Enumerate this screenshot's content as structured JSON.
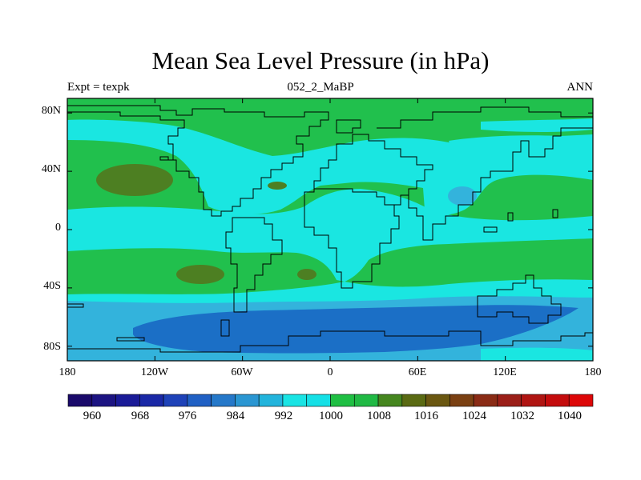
{
  "title": "Mean Sea Level Pressure (in hPa)",
  "left_string": "Expt = texpk",
  "center_string": "052_2_MaBP",
  "right_string": "ANN",
  "lon_ticks": [
    "180",
    "120W",
    "60W",
    "0",
    "60E",
    "120E",
    "180"
  ],
  "lat_ticks": [
    "80N",
    "40N",
    "0",
    "40S",
    "80S"
  ],
  "colorbar": {
    "colors": [
      "#1a0a6b",
      "#1c1482",
      "#1a1b97",
      "#1a28a6",
      "#1e42b8",
      "#2060c4",
      "#2578c9",
      "#2a96d2",
      "#22b4dc",
      "#19e4e4",
      "#15e0e6",
      "#1fbf43",
      "#20b944",
      "#45861f",
      "#5a6a13",
      "#6a5711",
      "#7a4012",
      "#8a2b15",
      "#9b1f18",
      "#b01512",
      "#c40c0d",
      "#dd0708"
    ],
    "labels": [
      "960",
      "968",
      "976",
      "984",
      "992",
      "1000",
      "1008",
      "1016",
      "1024",
      "1032",
      "1040"
    ]
  },
  "map_colors": {
    "g1000_1008": "#21c04d",
    "c992_1000": "#1ae6e1",
    "l984_992": "#33b3dc",
    "d976_984": "#1b6fc6",
    "o1016_1024": "#4d7f22",
    "coast": "#000000"
  }
}
